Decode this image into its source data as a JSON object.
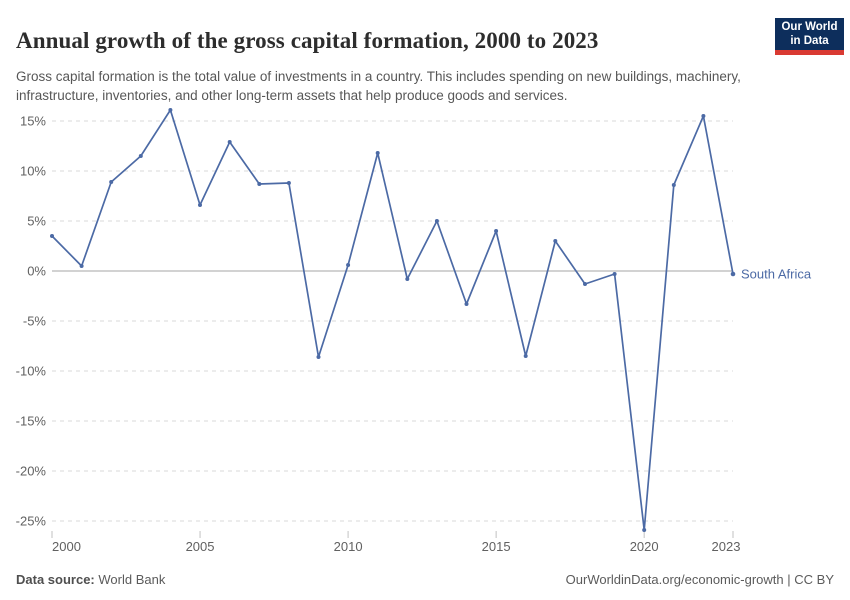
{
  "header": {
    "title": "Annual growth of the gross capital formation, 2000 to 2023",
    "subtitle": [
      "Gross capital formation is the total value of investments in a country. This includes spending on new buildings,",
      "machinery, infrastructure, inventories, and other long-term assets that help produce goods and services."
    ],
    "logo": {
      "line1": "Our World",
      "line2": "in Data",
      "bg_color": "#0d2e5c",
      "accent_color": "#d93a32"
    }
  },
  "chart_data": {
    "type": "line",
    "title": "Annual growth of the gross capital formation, 2000 to 2023",
    "xlabel": "",
    "ylabel": "",
    "x": [
      2000,
      2001,
      2002,
      2003,
      2004,
      2005,
      2006,
      2007,
      2008,
      2009,
      2010,
      2011,
      2012,
      2013,
      2014,
      2015,
      2016,
      2017,
      2018,
      2019,
      2020,
      2021,
      2022,
      2023
    ],
    "series": [
      {
        "name": "South Africa",
        "values": [
          3.5,
          0.5,
          8.9,
          11.5,
          16.1,
          6.6,
          12.9,
          8.7,
          8.8,
          -8.6,
          0.6,
          11.8,
          -0.8,
          5.0,
          -3.3,
          4.0,
          -8.5,
          3.0,
          -1.3,
          -0.3,
          -25.9,
          8.6,
          15.5,
          -0.3
        ]
      }
    ],
    "xlim": [
      2000,
      2023
    ],
    "ylim": [
      -26,
      16.5
    ],
    "yticks": [
      15,
      10,
      5,
      0,
      -5,
      -10,
      -15,
      -20,
      -25
    ],
    "ytick_labels": [
      "15%",
      "10%",
      "5%",
      "0%",
      "-5%",
      "-10%",
      "-15%",
      "-20%",
      "-25%"
    ],
    "xticks": [
      2000,
      2005,
      2010,
      2015,
      2020,
      2023
    ],
    "xtick_labels": [
      "2000",
      "2005",
      "2010",
      "2015",
      "2020",
      "2023"
    ],
    "grid": "horizontal dashed, on",
    "legend_position": "label at end of line",
    "line_color": "#4c6aa5",
    "grid_color": "#dadada",
    "axis_color": "#a6a6a6",
    "tick_mark_color": "#c2c2c2",
    "tick_text_color": "#616161"
  },
  "footer": {
    "source_label": "Data source:",
    "source_value": "World Bank",
    "credit_url": "OurWorldinData.org/economic-growth",
    "separator": "|",
    "license": "CC BY"
  }
}
